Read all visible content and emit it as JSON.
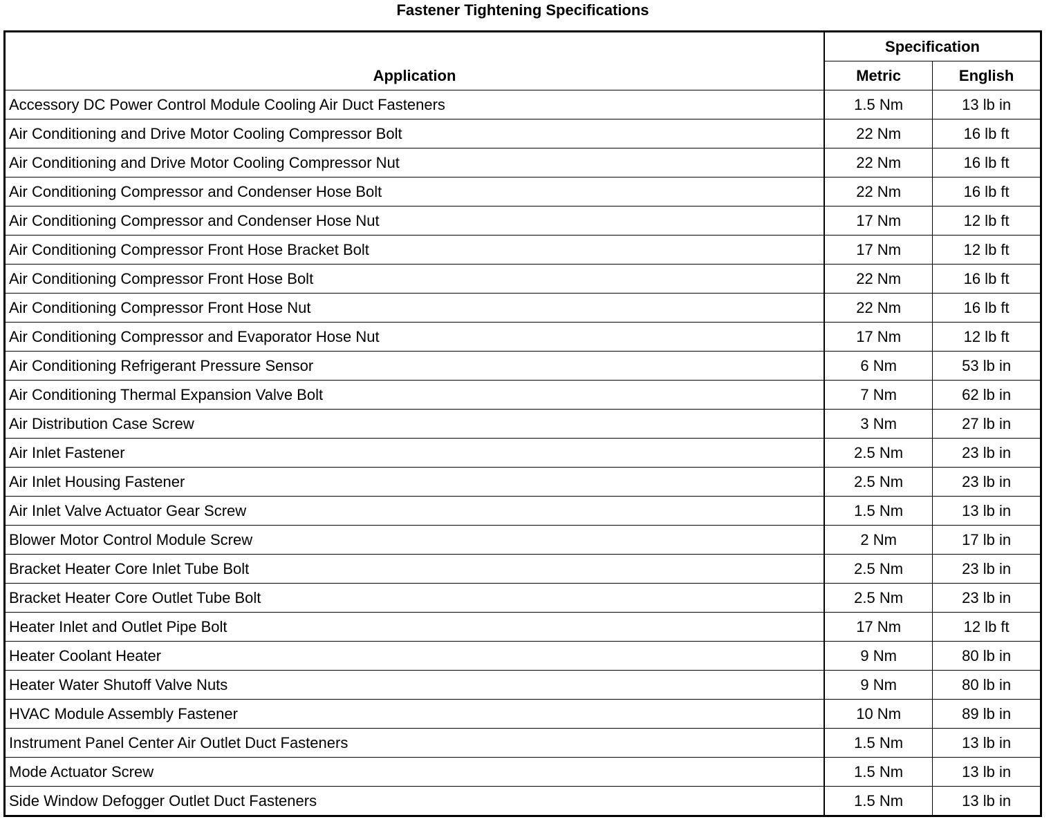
{
  "title": "Fastener Tightening Specifications",
  "headers": {
    "application": "Application",
    "specification": "Specification",
    "metric": "Metric",
    "english": "English"
  },
  "rows": [
    [
      "Accessory DC Power Control Module Cooling Air Duct Fasteners",
      "1.5 Nm",
      "13 lb in"
    ],
    [
      "Air Conditioning and Drive Motor Cooling Compressor Bolt",
      "22 Nm",
      "16 lb ft"
    ],
    [
      "Air Conditioning and Drive Motor Cooling Compressor Nut",
      "22 Nm",
      "16 lb ft"
    ],
    [
      "Air Conditioning Compressor and Condenser Hose Bolt",
      "22 Nm",
      "16 lb ft"
    ],
    [
      "Air Conditioning Compressor and Condenser Hose Nut",
      "17 Nm",
      "12 lb ft"
    ],
    [
      "Air Conditioning Compressor Front Hose Bracket Bolt",
      "17 Nm",
      "12 lb ft"
    ],
    [
      "Air Conditioning Compressor Front Hose Bolt",
      "22 Nm",
      "16 lb ft"
    ],
    [
      "Air Conditioning Compressor Front Hose Nut",
      "22 Nm",
      "16 lb ft"
    ],
    [
      "Air Conditioning Compressor and Evaporator Hose Nut",
      "17 Nm",
      "12 lb ft"
    ],
    [
      "Air Conditioning Refrigerant Pressure Sensor",
      "6 Nm",
      "53 lb in"
    ],
    [
      "Air Conditioning Thermal Expansion Valve Bolt",
      "7 Nm",
      "62 lb in"
    ],
    [
      "Air Distribution Case Screw",
      "3 Nm",
      "27 lb in"
    ],
    [
      "Air Inlet Fastener",
      "2.5 Nm",
      "23 lb in"
    ],
    [
      "Air Inlet Housing Fastener",
      "2.5 Nm",
      "23 lb in"
    ],
    [
      "Air Inlet Valve Actuator Gear Screw",
      "1.5 Nm",
      "13 lb in"
    ],
    [
      "Blower Motor Control Module Screw",
      "2 Nm",
      "17 lb in"
    ],
    [
      "Bracket Heater Core Inlet Tube Bolt",
      "2.5 Nm",
      "23 lb in"
    ],
    [
      "Bracket Heater Core Outlet Tube Bolt",
      "2.5 Nm",
      "23 lb in"
    ],
    [
      "Heater Inlet and Outlet Pipe Bolt",
      "17 Nm",
      "12 lb ft"
    ],
    [
      "Heater Coolant Heater",
      "9 Nm",
      "80 lb in"
    ],
    [
      "Heater Water Shutoff Valve Nuts",
      "9 Nm",
      "80 lb in"
    ],
    [
      "HVAC Module Assembly Fastener",
      "10 Nm",
      "89 lb in"
    ],
    [
      "Instrument Panel Center Air Outlet Duct Fasteners",
      "1.5 Nm",
      "13 lb in"
    ],
    [
      "Mode Actuator Screw",
      "1.5 Nm",
      "13 lb in"
    ],
    [
      "Side Window Defogger Outlet Duct Fasteners",
      "1.5 Nm",
      "13 lb in"
    ]
  ]
}
